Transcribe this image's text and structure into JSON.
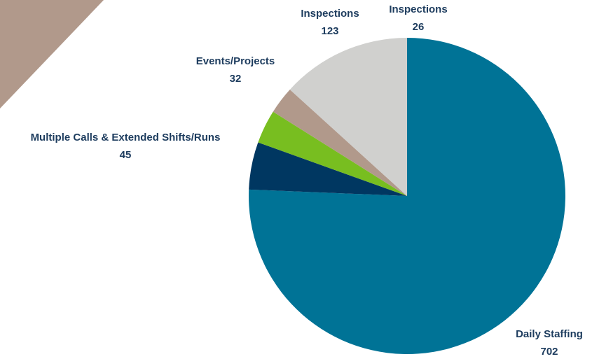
{
  "chart_data": {
    "type": "pie",
    "categories": [
      "Daily Staffing",
      "Multiple Calls & Extended Shifts/Runs",
      "Events/Projects",
      "Inspections",
      "Inspections"
    ],
    "values": [
      702,
      45,
      32,
      26,
      123
    ],
    "colors": [
      "#007396",
      "#003761",
      "#78be20",
      "#b1998b",
      "#d0d0ce"
    ]
  }
}
